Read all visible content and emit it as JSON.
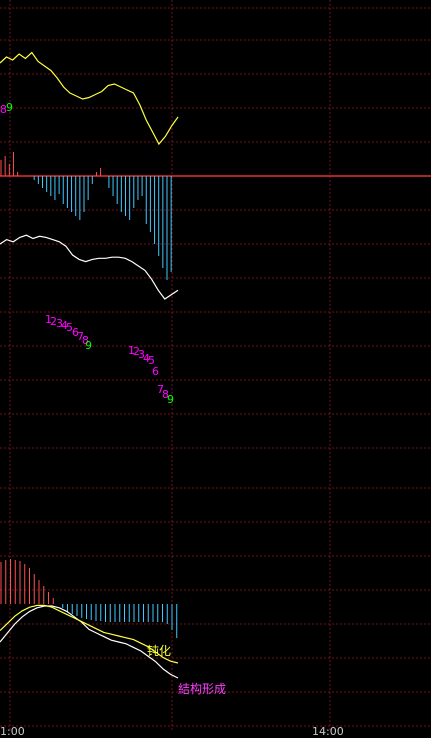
{
  "colors": {
    "background": "#000000",
    "grid": "#7a1018",
    "zero_line": "#e23030",
    "price_line": "#ffff40",
    "index_line": "#ffffff",
    "bar_up": "#ff5050",
    "bar_down": "#40c8ff",
    "seq_magenta": "#ff00ff",
    "seq_green": "#00ff00",
    "macd_dea": "#ffff40",
    "macd_dif": "#ffffff",
    "annotation_yellow": "#ffff40",
    "annotation_magenta": "#ff40ff"
  },
  "chart_data": {
    "type": "line",
    "price_series": [
      68,
      72,
      70,
      74,
      71,
      75,
      69,
      66,
      63,
      58,
      52,
      48,
      46,
      44,
      45,
      47,
      49,
      53,
      54,
      52,
      50,
      48,
      40,
      30,
      22,
      14,
      19,
      26,
      32
    ],
    "histogram_top": [
      8,
      10,
      6,
      12,
      2,
      0,
      0,
      0,
      -2,
      -4,
      -6,
      -8,
      -10,
      -12,
      -9,
      -14,
      -16,
      -18,
      -20,
      -22,
      -18,
      -12,
      -4,
      2,
      4,
      0,
      -6,
      -10,
      -14,
      -18,
      -20,
      -22,
      -16,
      -12,
      -10,
      -24,
      -28,
      -34,
      -40,
      -46,
      -52,
      -48
    ],
    "index_series": [
      40,
      44,
      42,
      46,
      48,
      45,
      47,
      46,
      44,
      42,
      38,
      30,
      26,
      24,
      26,
      27,
      27,
      28,
      28,
      27,
      24,
      20,
      16,
      8,
      -2,
      -10,
      -6,
      -2
    ],
    "td_sequences": [
      {
        "labels": [
          "1",
          "2",
          "3",
          "4",
          "5",
          "6",
          "7",
          "8",
          "9"
        ]
      },
      {
        "labels": [
          "1",
          "2",
          "3",
          "4",
          "5",
          "6",
          "7",
          "8",
          "9"
        ]
      }
    ],
    "macd_hist": [
      42,
      44,
      45,
      44,
      43,
      40,
      36,
      30,
      24,
      18,
      12,
      6,
      0,
      -4,
      -8,
      -10,
      -12,
      -14,
      -15,
      -16,
      -17,
      -17,
      -18,
      -18,
      -18,
      -18,
      -18,
      -18,
      -18,
      -18,
      -18,
      -18,
      -18,
      -18,
      -18,
      -20,
      -26,
      -34
    ],
    "macd_dif": [
      -20,
      -10,
      0,
      8,
      14,
      18,
      20,
      20,
      18,
      14,
      8,
      2,
      -6,
      -10,
      -14,
      -18,
      -20,
      -22,
      -26,
      -30,
      -36,
      -42,
      -50,
      -56,
      -60
    ],
    "macd_dea": [
      -14,
      -6,
      2,
      8,
      12,
      14,
      14,
      12,
      8,
      4,
      0,
      -4,
      -8,
      -12,
      -16,
      -18,
      -20,
      -22,
      -24,
      -28,
      -32,
      -38,
      -44,
      -48,
      -50
    ]
  },
  "annotations": {
    "dunhua": "钝化",
    "jiegou": "結构形成"
  },
  "time_axis": {
    "left_tick": "1:00",
    "right_tick": "14:00"
  },
  "left_edge_label": {
    "text_magenta": "8",
    "text_green": "9"
  }
}
